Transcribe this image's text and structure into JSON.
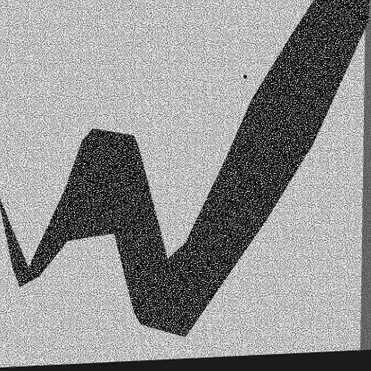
{
  "image": {
    "subject": "checkmark-scan",
    "colors": {
      "background": "#ffffff",
      "ink": "#111111",
      "noise_light": "#bdbdbd",
      "noise_dark": "#2a2a2a"
    }
  }
}
